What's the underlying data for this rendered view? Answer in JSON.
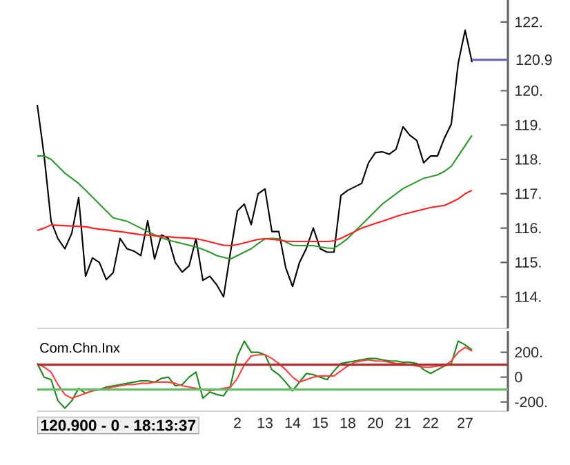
{
  "chart_data": [
    {
      "type": "line",
      "tick_labels": "y",
      "marker": "none",
      "line_style": "solid",
      "ylim": [
        113.08,
        122.64
      ],
      "categories": [
        null,
        null,
        null,
        null,
        null,
        null,
        null,
        null,
        null,
        null,
        null,
        null,
        null,
        null,
        null,
        null,
        null,
        null,
        null,
        null,
        null,
        null,
        null,
        null,
        null,
        null,
        null,
        null,
        null,
        "2",
        null,
        null,
        null,
        "13",
        null,
        null,
        null,
        "14",
        null,
        null,
        null,
        "15",
        null,
        null,
        null,
        "18",
        null,
        null,
        null,
        "20",
        null,
        null,
        null,
        "21",
        null,
        null,
        null,
        "22",
        null,
        null,
        null,
        null,
        "27",
        null,
        null,
        null,
        null,
        null,
        null
      ],
      "yticks": [
        {
          "value": 114,
          "label": "114."
        },
        {
          "value": 115,
          "label": "115."
        },
        {
          "value": 116,
          "label": "116."
        },
        {
          "value": 117,
          "label": "117."
        },
        {
          "value": 118,
          "label": "118."
        },
        {
          "value": 119,
          "label": "119."
        },
        {
          "value": 120,
          "label": "120."
        },
        {
          "value": 122,
          "label": "122."
        }
      ],
      "series": [
        {
          "color": "#000000",
          "values": [
            119.59,
            118.1,
            116.2,
            115.69,
            115.4,
            115.85,
            116.89,
            114.6,
            115.13,
            115.0,
            114.5,
            114.7,
            115.7,
            115.4,
            115.33,
            115.2,
            116.21,
            115.1,
            115.8,
            115.7,
            115.0,
            114.72,
            114.9,
            115.69,
            114.48,
            114.6,
            114.35,
            114.0,
            115.3,
            116.5,
            116.7,
            116.1,
            117.0,
            117.14,
            115.9,
            115.9,
            114.85,
            114.3,
            115.0,
            115.41,
            116.0,
            115.4,
            115.3,
            115.3,
            116.95,
            117.1,
            117.2,
            117.3,
            117.9,
            118.2,
            118.22,
            118.15,
            118.3,
            118.95,
            118.7,
            118.55,
            117.9,
            118.1,
            118.1,
            118.62,
            119.03,
            120.8,
            121.76,
            120.83,
            null,
            null,
            null,
            null,
            null
          ]
        },
        {
          "color": "#2e9a2e",
          "values": [
            118.1,
            118.1,
            118.0,
            117.8,
            117.6,
            117.45,
            117.3,
            117.1,
            116.9,
            116.7,
            116.5,
            116.3,
            116.25,
            116.2,
            116.1,
            116.0,
            115.9,
            115.8,
            115.72,
            115.65,
            115.6,
            115.55,
            115.5,
            115.45,
            115.38,
            115.3,
            115.2,
            115.15,
            115.1,
            115.2,
            115.3,
            115.4,
            115.55,
            115.69,
            115.7,
            115.69,
            115.6,
            115.5,
            115.49,
            115.49,
            115.49,
            115.45,
            115.42,
            115.41,
            115.55,
            115.7,
            115.9,
            116.1,
            116.3,
            116.5,
            116.7,
            116.85,
            117.0,
            117.15,
            117.25,
            117.35,
            117.45,
            117.5,
            117.55,
            117.65,
            117.8,
            118.1,
            118.4,
            118.7,
            null,
            null,
            null,
            null,
            null
          ]
        },
        {
          "color": "#ff2020",
          "values": [
            115.93,
            116.0,
            116.09,
            116.08,
            116.07,
            116.06,
            116.05,
            116.04,
            116.0,
            115.97,
            115.95,
            115.92,
            115.9,
            115.87,
            115.84,
            115.81,
            115.8,
            115.78,
            115.76,
            115.75,
            115.73,
            115.72,
            115.71,
            115.69,
            115.65,
            115.6,
            115.55,
            115.5,
            115.49,
            115.52,
            115.57,
            115.62,
            115.67,
            115.69,
            115.67,
            115.65,
            115.62,
            115.61,
            115.61,
            115.61,
            115.61,
            115.61,
            115.61,
            115.63,
            115.7,
            115.8,
            115.9,
            116.0,
            116.07,
            116.14,
            116.2,
            116.27,
            116.34,
            116.4,
            116.45,
            116.5,
            116.55,
            116.6,
            116.63,
            116.66,
            116.75,
            116.85,
            117.0,
            117.1,
            null,
            null,
            null,
            null,
            null
          ]
        }
      ],
      "ref_lines": [
        {
          "axis": "y",
          "value": 120.9,
          "label": "120.9",
          "color": "#6a6ab8"
        }
      ]
    },
    {
      "type": "line",
      "title": "Com.Chn.Inx",
      "marker": "none",
      "line_style": "solid",
      "ylim": [
        -274,
        370
      ],
      "categories": [
        null,
        null,
        null,
        null,
        null,
        null,
        null,
        null,
        null,
        null,
        null,
        null,
        null,
        null,
        null,
        null,
        null,
        null,
        null,
        null,
        null,
        null,
        null,
        null,
        null,
        null,
        null,
        null,
        null,
        "2",
        null,
        null,
        null,
        "13",
        null,
        null,
        null,
        "14",
        null,
        null,
        null,
        "15",
        null,
        null,
        null,
        "18",
        null,
        null,
        null,
        "20",
        null,
        null,
        null,
        "21",
        null,
        null,
        null,
        "22",
        null,
        null,
        null,
        null,
        "27",
        null,
        null,
        null,
        null,
        null,
        null
      ],
      "yticks": [
        {
          "value": 200,
          "label": "200."
        },
        0,
        {
          "value": -200,
          "label": "-200."
        }
      ],
      "series": [
        {
          "color": "#1a8c1a",
          "values": [
            110,
            0,
            -20,
            -190,
            -250,
            -190,
            -90,
            -130,
            -110,
            -100,
            -80,
            -70,
            -60,
            -50,
            -40,
            -30,
            -30,
            -40,
            -10,
            0,
            -70,
            -60,
            0,
            40,
            -170,
            -120,
            -140,
            -150,
            -70,
            170,
            290,
            200,
            200,
            180,
            60,
            20,
            -40,
            -110,
            -40,
            30,
            20,
            0,
            -20,
            50,
            110,
            120,
            130,
            140,
            150,
            150,
            140,
            130,
            130,
            120,
            120,
            110,
            60,
            30,
            60,
            90,
            110,
            290,
            260,
            220,
            null,
            null,
            null,
            null,
            null
          ]
        },
        {
          "color": "#ff4040",
          "values": [
            110,
            80,
            40,
            -60,
            -140,
            -170,
            -150,
            -130,
            -110,
            -100,
            -90,
            -80,
            -70,
            -60,
            -60,
            -50,
            -50,
            -40,
            -40,
            -40,
            -50,
            -70,
            -80,
            -90,
            -100,
            -110,
            -100,
            -90,
            -80,
            -10,
            100,
            170,
            180,
            180,
            150,
            110,
            60,
            0,
            -40,
            -20,
            0,
            10,
            10,
            10,
            50,
            90,
            120,
            130,
            140,
            130,
            130,
            120,
            110,
            110,
            100,
            90,
            80,
            80,
            90,
            90,
            130,
            200,
            240,
            210,
            null,
            null,
            null,
            null,
            null
          ]
        }
      ],
      "ref_lines": [
        {
          "axis": "y",
          "value": 100,
          "color": "#b03030"
        },
        {
          "axis": "y",
          "value": -100,
          "color": "#66bb66"
        }
      ],
      "annotations": [
        "120.900 - 0 - 18:13:37"
      ]
    }
  ]
}
